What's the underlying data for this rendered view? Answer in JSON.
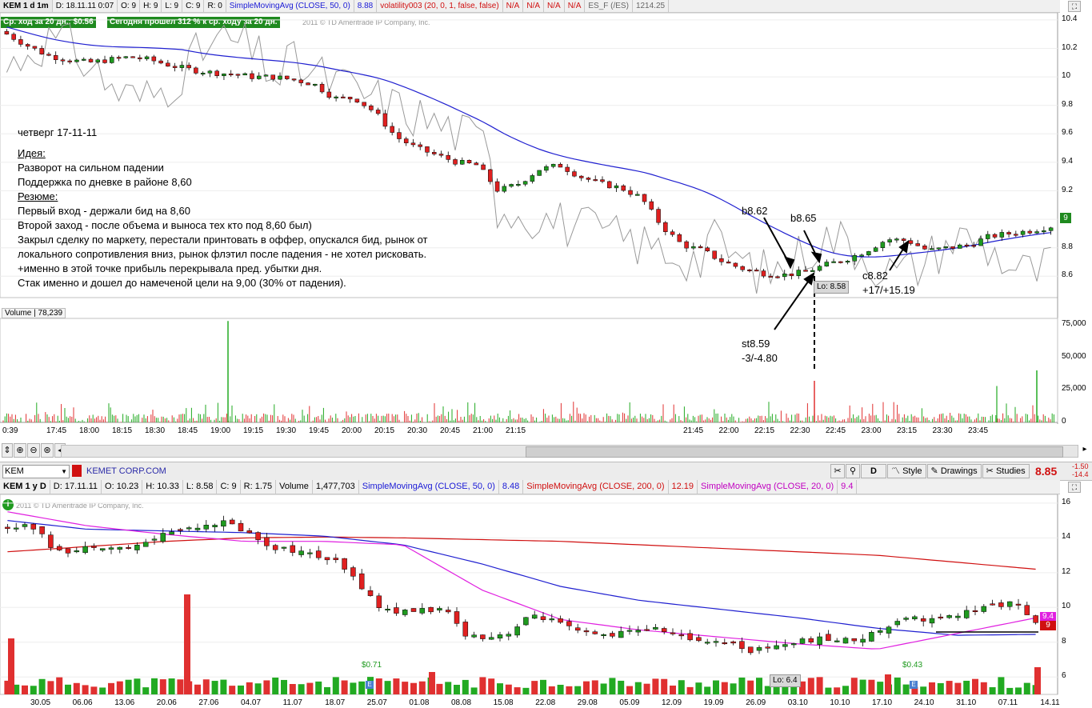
{
  "top_header": {
    "symbol": "KEM 1 d 1m",
    "date": "D: 18.11.11 0:07",
    "open": "O: 9",
    "high": "H: 9",
    "low": "L: 9",
    "close": "C: 9",
    "range": "R: 0",
    "sma_label": "SimpleMovingAvg (CLOSE, 50, 0)",
    "sma_value": "8.88",
    "vol_label": "volatility003 (20, 0, 1, false, false)",
    "na1": "N/A",
    "na2": "N/A",
    "na3": "N/A",
    "na4": "N/A",
    "es_label": "ES_F (/ES)",
    "es_value": "1214.25"
  },
  "top_badges": {
    "avg_move": "Ср. ход за 20 дн.: $0.56",
    "today": "Сегодня прошел 312 % к ср. ходу за 20 дн."
  },
  "copyright": "2011 © TD Ameritrade IP Company, Inc.",
  "notes": {
    "line1": "четверг 17-11-11",
    "idea_hdr": "Идея:",
    "idea1": "Разворот на сильном падении",
    "idea2": "Поддержка по дневке в районе 8,60",
    "summary_hdr": "Резюме:",
    "s1": "Первый вход - держали бид на 8,60",
    "s2": "Второй заход - после объема и выноса тех кто под 8,60 был)",
    "s3": "Закрыл сделку по маркету, перестали принтовать в оффер, опускался бид, рынок от",
    "s4": "локального сопротивления вниз, рынок флэтил после падения - не хотел рисковать.",
    "s5": "+именно в этой точке прибыль перекрывала пред. убытки дня.",
    "s6": "Стак именно и дошел до намеченой цели на 9,00 (30% от падения)."
  },
  "annotations": {
    "b1": "b8.62",
    "b2": "b8.65",
    "c1": "c8.82",
    "c1_pl": "+17/+15.19",
    "st": "st8.59",
    "st_pl": "-3/-4.80",
    "lo_top": "Lo: 8.58",
    "lo_bottom": "Lo: 6.4"
  },
  "volume_label": "Volume",
  "volume_value": "78,239",
  "bottom_toolbar": {
    "symbol": "KEM",
    "company": "KEMET CORP.COM",
    "d_btn": "D",
    "style_btn": "Style",
    "drawings_btn": "Drawings",
    "studies_btn": "Studies",
    "price": "8.85",
    "chg1": "-1.50",
    "chg2": "-14.4"
  },
  "bottom_header": {
    "symbol": "KEM 1 y D",
    "date": "D: 17.11.11",
    "open": "O: 10.23",
    "high": "H: 10.33",
    "low": "L: 8.58",
    "close": "C: 9",
    "range": "R: 1.75",
    "vol_label": "Volume",
    "vol_value": "1,477,703",
    "sma50_label": "SimpleMovingAvg (CLOSE, 50, 0)",
    "sma50_value": "8.48",
    "sma200_label": "SimpleMovingAvg (CLOSE, 200, 0)",
    "sma200_value": "12.19",
    "sma20_label": "SimpleMovingAvg (CLOSE, 20, 0)",
    "sma20_value": "9.4"
  },
  "div_labels": {
    "d1": "$0.71",
    "d2": "$0.43"
  },
  "colors": {
    "up": "#1f9a1f",
    "down": "#e02020",
    "sma50": "#2020d0",
    "sma200": "#d01010",
    "sma20": "#e020e0",
    "vol_up": "#22aa22",
    "vol_down": "#e03030"
  },
  "chart_data": [
    {
      "type": "candlestick",
      "title": "KEM 1 d 1m",
      "ylim": [
        8.45,
        10.45
      ],
      "y_ticks": [
        "10.4",
        "10.2",
        "10",
        "9.8",
        "9.6",
        "9.4",
        "9.2",
        "9",
        "8.8",
        "8.6"
      ],
      "x_ticks": [
        "0:39",
        "17:45",
        "18:00",
        "18:15",
        "18:30",
        "18:45",
        "19:00",
        "19:15",
        "19:30",
        "19:45",
        "20:00",
        "20:15",
        "20:30",
        "20:45",
        "21:00",
        "21:15",
        "21:45",
        "22:00",
        "22:15",
        "22:30",
        "22:45",
        "23:00",
        "23:15",
        "23:30",
        "23:45"
      ],
      "close_path": [
        10.3,
        10.22,
        10.15,
        10.12,
        10.1,
        10.12,
        10.14,
        10.12,
        10.08,
        10.05,
        10.03,
        10.02,
        10.0,
        10.0,
        9.98,
        9.95,
        9.85,
        9.85,
        9.75,
        9.58,
        9.5,
        9.45,
        9.4,
        9.38,
        9.2,
        9.25,
        9.35,
        9.38,
        9.3,
        9.25,
        9.22,
        9.15,
        8.95,
        8.82,
        8.78,
        8.7,
        8.65,
        8.62,
        8.61,
        8.63,
        8.68,
        8.72,
        8.78,
        8.86,
        8.85,
        8.78,
        8.8,
        8.82,
        8.88,
        8.9,
        8.92,
        8.95
      ],
      "last_price": "9"
    },
    {
      "type": "bar",
      "title": "Volume",
      "y_ticks": [
        "75,000",
        "50,000",
        "25,000",
        "0"
      ],
      "ylim": [
        0,
        80000
      ],
      "spikes": [
        {
          "x": "18:45",
          "value": 78000
        },
        {
          "x": "22:30",
          "value": 32000
        },
        {
          "x": "23:45",
          "value": 40000
        }
      ]
    },
    {
      "type": "candlestick",
      "title": "KEM 1 y D",
      "ylim": [
        5,
        16.5
      ],
      "y_ticks": [
        "16",
        "14",
        "12",
        "10",
        "8",
        "6"
      ],
      "x_ticks": [
        "30.05",
        "06.06",
        "13.06",
        "20.06",
        "27.06",
        "04.07",
        "11.07",
        "18.07",
        "25.07",
        "01.08",
        "08.08",
        "15.08",
        "22.08",
        "29.08",
        "05.09",
        "12.09",
        "19.09",
        "26.09",
        "03.10",
        "10.10",
        "17.10",
        "24.10",
        "31.10",
        "07.11",
        "14.11"
      ],
      "close_path": [
        14.5,
        14.9,
        13.5,
        13.2,
        13.6,
        13.4,
        13.5,
        14.2,
        14.5,
        14.8,
        14.9,
        14.3,
        13.5,
        13.3,
        13.0,
        12.6,
        11.5,
        10.0,
        9.7,
        9.9,
        9.8,
        8.4,
        8.3,
        8.6,
        9.6,
        9.2,
        8.6,
        8.4,
        8.5,
        8.8,
        8.7,
        8.2,
        8.1,
        8.0,
        7.5,
        7.8,
        8.0,
        8.2,
        8.1,
        8.2,
        8.8,
        9.5,
        9.3,
        9.4,
        9.8,
        10.1,
        10.3,
        9.0
      ],
      "sma200": [
        13.2,
        13.5,
        13.8,
        14.0,
        14.05,
        14.0,
        13.9,
        13.8,
        13.6,
        13.4,
        13.2,
        13.0,
        12.6,
        12.2
      ],
      "sma50": [
        15.0,
        14.5,
        14.4,
        14.3,
        14.1,
        13.6,
        12.5,
        11.2,
        10.4,
        9.9,
        9.4,
        8.8,
        8.4,
        8.45
      ],
      "sma20": [
        15.5,
        14.7,
        14.2,
        13.8,
        13.8,
        13.6,
        11.0,
        9.3,
        8.7,
        8.3,
        7.9,
        7.6,
        8.5,
        9.4
      ],
      "last_price": "9",
      "sma20_last": "9.4"
    }
  ]
}
